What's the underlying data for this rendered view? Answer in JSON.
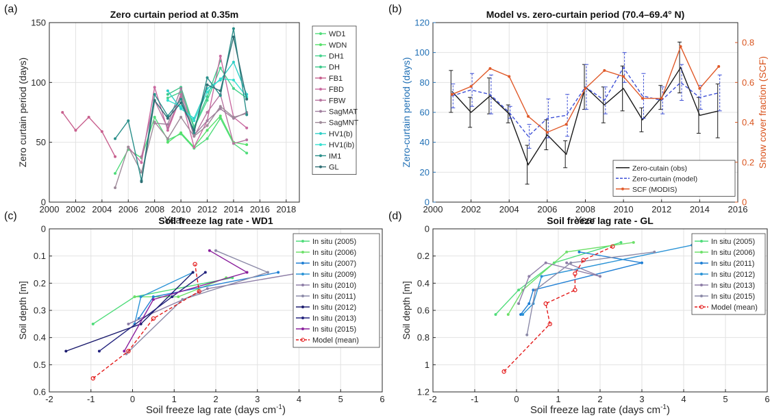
{
  "chart_data": [
    {
      "panel_label": "(a)",
      "type": "line",
      "title": "Zero curtain period at 0.35m",
      "xlabel": "Year",
      "ylabel": "Zero curtain period (days)",
      "xlim": [
        2000,
        2019
      ],
      "ylim": [
        0,
        150
      ],
      "xticks": [
        2000,
        2002,
        2004,
        2006,
        2008,
        2010,
        2012,
        2014,
        2016,
        2018
      ],
      "yticks": [
        0,
        50,
        100,
        150
      ],
      "grid": true,
      "legend_position": "right",
      "series": [
        {
          "name": "WD1",
          "color": "#4fdc7a",
          "x": [
            2005,
            2006,
            2007,
            2008,
            2009,
            2010,
            2011,
            2012,
            2013,
            2014,
            2015
          ],
          "y": [
            24,
            44,
            37,
            71,
            52,
            57,
            45,
            53,
            70,
            49,
            41
          ]
        },
        {
          "name": "WDN",
          "color": "#55e06a",
          "x": [
            2009,
            2010,
            2011,
            2012,
            2013,
            2014,
            2015
          ],
          "y": [
            50,
            58,
            46,
            60,
            72,
            50,
            48
          ]
        },
        {
          "name": "DH1",
          "color": "#45d38c",
          "x": [
            2009,
            2010,
            2011,
            2012,
            2013,
            2014,
            2015
          ],
          "y": [
            87,
            92,
            62,
            85,
            112,
            95,
            87
          ]
        },
        {
          "name": "DH",
          "color": "#3cc98a",
          "x": [
            2009,
            2010,
            2011,
            2012,
            2013
          ],
          "y": [
            90,
            96,
            63,
            88,
            118
          ]
        },
        {
          "name": "FB1",
          "color": "#c8608e",
          "x": [
            2001,
            2002,
            2003,
            2004,
            2005
          ],
          "y": [
            75,
            60,
            71,
            59,
            38
          ]
        },
        {
          "name": "FBD",
          "color": "#c96aa0",
          "x": [
            2006,
            2007,
            2008,
            2009,
            2010,
            2011,
            2012,
            2013,
            2014,
            2015
          ],
          "y": [
            46,
            33,
            96,
            60,
            88,
            46,
            68,
            122,
            71,
            62
          ]
        },
        {
          "name": "FBW",
          "color": "#b7749f",
          "x": [
            2007,
            2008,
            2009,
            2010,
            2011,
            2012,
            2013,
            2014,
            2015
          ],
          "y": [
            38,
            85,
            62,
            90,
            55,
            75,
            90,
            49,
            52
          ]
        },
        {
          "name": "SagMAT",
          "color": "#a07f9e",
          "x": [
            2008,
            2009,
            2010,
            2011,
            2012,
            2013,
            2014,
            2015
          ],
          "y": [
            66,
            65,
            95,
            56,
            68,
            78,
            70,
            75
          ]
        },
        {
          "name": "SagMNT",
          "color": "#9e8a99",
          "x": [
            2005,
            2006,
            2007,
            2008,
            2009,
            2010,
            2011,
            2012,
            2013,
            2014,
            2015
          ],
          "y": [
            12,
            46,
            25,
            67,
            53,
            71,
            55,
            64,
            80,
            71,
            74
          ]
        },
        {
          "name": "HV1(b)",
          "color": "#2ecfc7",
          "x": [
            2009,
            2010,
            2011,
            2012,
            2013,
            2014,
            2015
          ],
          "y": [
            93,
            78,
            70,
            95,
            102,
            117,
            90
          ]
        },
        {
          "name": "HV1(ib)",
          "color": "#35e0d0",
          "x": [
            2009,
            2010,
            2011,
            2012,
            2013,
            2014,
            2015
          ],
          "y": [
            85,
            80,
            68,
            92,
            103,
            102,
            88
          ]
        },
        {
          "name": "IM1",
          "color": "#2a8f8a",
          "x": [
            2005,
            2006,
            2007,
            2008,
            2009,
            2010,
            2011,
            2012,
            2013,
            2014,
            2015
          ],
          "y": [
            53,
            68,
            18,
            90,
            72,
            86,
            58,
            104,
            89,
            145,
            73
          ]
        },
        {
          "name": "GL",
          "color": "#2f6f74",
          "x": [
            2007,
            2008,
            2009,
            2010,
            2011,
            2012,
            2013,
            2014,
            2015
          ],
          "y": [
            17,
            85,
            70,
            83,
            60,
            98,
            93,
            138,
            86
          ]
        }
      ]
    },
    {
      "panel_label": "(b)",
      "type": "line",
      "title": "Model vs. zero-curtain period (70.4–69.4° N)",
      "xlabel": "Year",
      "ylabel": "Zero-curtain period (days)",
      "ylabel_right": "Snow cover fraction (SCF)",
      "xlim": [
        2000,
        2016
      ],
      "ylim": [
        0,
        120
      ],
      "ylim_right": [
        0,
        0.9
      ],
      "xticks": [
        2000,
        2002,
        2004,
        2006,
        2008,
        2010,
        2012,
        2014,
        2016
      ],
      "yticks": [
        0,
        20,
        40,
        60,
        80,
        100,
        120
      ],
      "yticks_right": [
        0,
        0.2,
        0.4,
        0.6,
        0.8
      ],
      "grid": true,
      "legend_position": "bottom-right",
      "x": [
        2001,
        2002,
        2003,
        2004,
        2005,
        2006,
        2007,
        2008,
        2009,
        2010,
        2011,
        2012,
        2013,
        2014,
        2015
      ],
      "series": [
        {
          "name": "Zero-cutain (obs)",
          "color": "#1a1a1a",
          "y": [
            74,
            60,
            71,
            59,
            25,
            45,
            32,
            77,
            65,
            76,
            55,
            70,
            90,
            58,
            61
          ],
          "err": [
            14,
            10,
            12,
            6,
            13,
            10,
            9,
            15,
            12,
            15,
            8,
            8,
            17,
            12,
            18
          ]
        },
        {
          "name": "Zero-curtain (model)",
          "color": "#3d4fd6",
          "y": [
            71,
            75,
            72,
            60,
            44,
            56,
            58,
            77,
            68,
            90,
            71,
            68,
            80,
            70,
            73
          ],
          "err": [
            8,
            11,
            13,
            4,
            8,
            13,
            14,
            15,
            9,
            10,
            15,
            9,
            12,
            8,
            12
          ]
        },
        {
          "name": "SCF (MODIS)",
          "color": "#e05a2a",
          "axis": "right",
          "y": [
            0.54,
            0.58,
            0.67,
            0.63,
            0.43,
            0.35,
            0.39,
            0.57,
            0.66,
            0.63,
            0.52,
            0.52,
            0.78,
            0.57,
            0.68
          ]
        }
      ]
    },
    {
      "panel_label": "(c)",
      "type": "line",
      "title": "Soil freeze lag rate - WD1",
      "xlabel": "Soil freeze lag rate (days cm",
      "xlabel_superscript": "-1",
      "xlabel_suffix": ")",
      "ylabel": "Soil depth [m]",
      "xlim": [
        -2,
        6
      ],
      "ylim": [
        0.6,
        0
      ],
      "xticks": [
        -2,
        -1,
        0,
        1,
        2,
        3,
        4,
        5,
        6
      ],
      "yticks": [
        0,
        0.1,
        0.2,
        0.3,
        0.4,
        0.5,
        0.6
      ],
      "grid": true,
      "legend_position": "top-right",
      "series": [
        {
          "name": "In situ (2005)",
          "color": "#4fdc7a",
          "x": [
            -0.95,
            0.05,
            2.4
          ],
          "y": [
            0.35,
            0.25,
            0.18
          ]
        },
        {
          "name": "In situ (2006)",
          "color": "#6ee06a",
          "x": [
            0.05,
            1.1,
            2.25
          ],
          "y": [
            0.25,
            0.25,
            0.18
          ]
        },
        {
          "name": "In situ (2007)",
          "color": "#1f7fd4",
          "x": [
            0.15,
            0.5,
            3.5
          ],
          "y": [
            0.33,
            0.25,
            0.16
          ]
        },
        {
          "name": "In situ (2009)",
          "color": "#2a93d6",
          "x": [
            0.05,
            0.2,
            1.45
          ],
          "y": [
            0.35,
            0.25,
            0.16
          ]
        },
        {
          "name": "In situ (2010)",
          "color": "#8e7ea7",
          "x": [
            -0.1,
            1.8,
            4.1
          ],
          "y": [
            0.35,
            0.22,
            0.16
          ]
        },
        {
          "name": "In situ (2011)",
          "color": "#8c8aa8",
          "x": [
            -0.15,
            1.2,
            3.25,
            2.0
          ],
          "y": [
            0.46,
            0.26,
            0.16,
            0.08
          ]
        },
        {
          "name": "In situ (2012)",
          "color": "#1c1c6e",
          "x": [
            -1.6,
            0.2,
            1.45
          ],
          "y": [
            0.45,
            0.35,
            0.16
          ]
        },
        {
          "name": "In situ (2013)",
          "color": "#23237e",
          "x": [
            -0.8,
            0.95,
            1.75
          ],
          "y": [
            0.45,
            0.25,
            0.16
          ]
        },
        {
          "name": "In situ (2015)",
          "color": "#8a1f9c",
          "x": [
            -0.2,
            0.5,
            2.75,
            1.85
          ],
          "y": [
            0.45,
            0.26,
            0.16,
            0.08
          ]
        },
        {
          "name": "Model (mean)",
          "color": "#e41a1a",
          "dashed": true,
          "x": [
            -0.95,
            -0.1,
            0.5,
            1.6,
            1.5
          ],
          "y": [
            0.55,
            0.45,
            0.33,
            0.23,
            0.13
          ]
        }
      ]
    },
    {
      "panel_label": "(d)",
      "type": "line",
      "title": "Soil freeze lag rate - GL",
      "xlabel": "Soil freeze lag rate (days cm",
      "xlabel_superscript": "-1",
      "xlabel_suffix": ")",
      "ylabel": "Soil depth [m]",
      "xlim": [
        -2,
        6
      ],
      "ylim": [
        1.2,
        0
      ],
      "xticks": [
        -2,
        -1,
        0,
        1,
        2,
        3,
        4,
        5,
        6
      ],
      "yticks": [
        0,
        0.2,
        0.4,
        0.6,
        0.8,
        1,
        1.2
      ],
      "grid": true,
      "legend_position": "top-right",
      "series": [
        {
          "name": "In situ (2005)",
          "color": "#4fdc7a",
          "x": [
            -0.5,
            0.05,
            0.9,
            2.5
          ],
          "y": [
            0.63,
            0.45,
            0.25,
            0.1
          ]
        },
        {
          "name": "In situ (2006)",
          "color": "#6ee06a",
          "x": [
            -0.2,
            0.15,
            1.2,
            2.8
          ],
          "y": [
            0.63,
            0.45,
            0.17,
            0.1
          ]
        },
        {
          "name": "In situ (2011)",
          "color": "#1f7fd4",
          "x": [
            0.1,
            0.3,
            0.4,
            3.0,
            1.5
          ],
          "y": [
            0.63,
            0.55,
            0.45,
            0.25,
            0.17
          ]
        },
        {
          "name": "In situ (2012)",
          "color": "#2a93d6",
          "x": [
            0.15,
            0.4,
            0.6,
            4.2
          ],
          "y": [
            0.63,
            0.55,
            0.35,
            0.12
          ]
        },
        {
          "name": "In situ (2013)",
          "color": "#8e7ea7",
          "x": [
            0.05,
            0.3,
            0.7,
            2.0,
            1.2
          ],
          "y": [
            0.55,
            0.35,
            0.25,
            0.35,
            0.25
          ]
        },
        {
          "name": "In situ (2015)",
          "color": "#8c8aa8",
          "x": [
            0.25,
            0.45,
            1.3,
            3.3
          ],
          "y": [
            0.78,
            0.45,
            0.25,
            0.17
          ]
        },
        {
          "name": "Model (mean)",
          "color": "#e41a1a",
          "dashed": true,
          "x": [
            -0.3,
            0.8,
            0.7,
            1.4,
            1.4,
            1.6,
            2.3
          ],
          "y": [
            1.05,
            0.7,
            0.55,
            0.45,
            0.33,
            0.23,
            0.13
          ]
        }
      ]
    }
  ]
}
